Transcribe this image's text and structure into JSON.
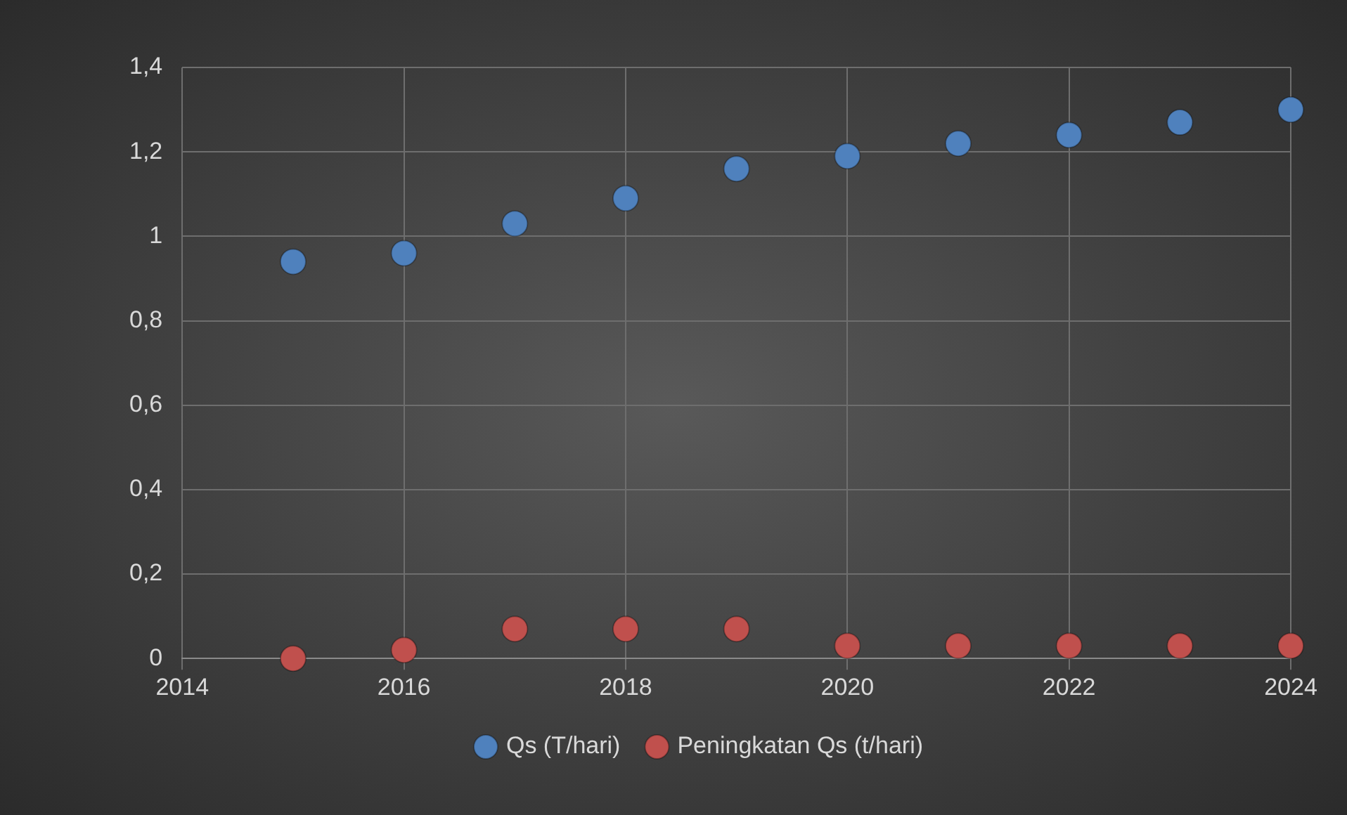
{
  "chart_data": {
    "type": "scatter",
    "x": [
      2015,
      2016,
      2017,
      2018,
      2019,
      2020,
      2021,
      2022,
      2023,
      2024
    ],
    "series": [
      {
        "name": "Qs (T/hari)",
        "color": "#4f81bd",
        "values": [
          0.94,
          0.96,
          1.03,
          1.09,
          1.16,
          1.19,
          1.22,
          1.24,
          1.27,
          1.3
        ]
      },
      {
        "name": "Peningkatan Qs (t/hari)",
        "color": "#c0504d",
        "values": [
          0,
          0.02,
          0.07,
          0.07,
          0.07,
          0.03,
          0.03,
          0.03,
          0.03,
          0.03
        ]
      }
    ],
    "xlim": [
      2014,
      2024
    ],
    "xticks": [
      2014,
      2016,
      2018,
      2020,
      2022,
      2024
    ],
    "ylim": [
      0,
      1.4
    ],
    "yticks": [
      {
        "value": 0,
        "label": "0"
      },
      {
        "value": 0.2,
        "label": "0,2"
      },
      {
        "value": 0.4,
        "label": "0,4"
      },
      {
        "value": 0.6,
        "label": "0,6"
      },
      {
        "value": 0.8,
        "label": "0,8"
      },
      {
        "value": 1,
        "label": "1"
      },
      {
        "value": 1.2,
        "label": "1,2"
      },
      {
        "value": 1.4,
        "label": "1,4"
      }
    ],
    "grid": true,
    "legend": "bottom",
    "marker": "circle"
  }
}
